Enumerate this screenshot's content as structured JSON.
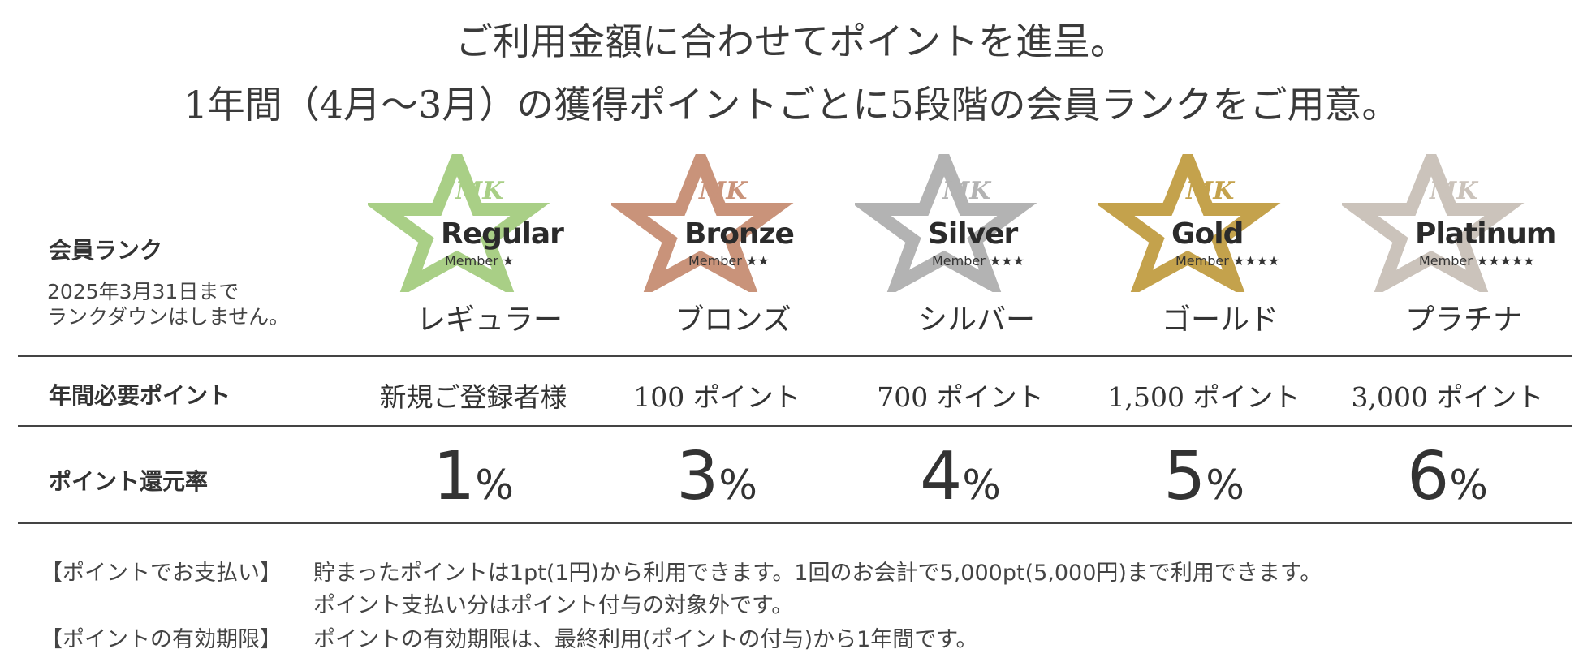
{
  "headline": {
    "line1": "ご利用金額に合わせてポイントを進呈。",
    "line2": "1年間（4月〜3月）の獲得ポイントごとに5段階の会員ランクをご用意。"
  },
  "rows": {
    "rank_label": "会員ランク",
    "rank_note_line1": "2025年3月31日まで",
    "rank_note_line2": "ランクダウンはしません。",
    "points_label": "年間必要ポイント",
    "rate_label": "ポイント還元率"
  },
  "tiers": [
    {
      "name_en": "Regular",
      "member": "Member ★",
      "mk": "MK",
      "name_jp": "レギュラー",
      "required": "新規ご登録者様",
      "rate": "1",
      "rate_unit": "%",
      "color": "#a9cf86"
    },
    {
      "name_en": "Bronze",
      "member": "Member ★★",
      "mk": "MK",
      "name_jp": "ブロンズ",
      "required": "100 ポイント",
      "rate": "3",
      "rate_unit": "%",
      "color": "#c9937a"
    },
    {
      "name_en": "Silver",
      "member": "Member ★★★",
      "mk": "MK",
      "name_jp": "シルバー",
      "required": "700 ポイント",
      "rate": "4",
      "rate_unit": "%",
      "color": "#b3b3b3"
    },
    {
      "name_en": "Gold",
      "member": "Member ★★★★",
      "mk": "MK",
      "name_jp": "ゴールド",
      "required": "1,500 ポイント",
      "rate": "5",
      "rate_unit": "%",
      "color": "#c4a24c"
    },
    {
      "name_en": "Platinum",
      "member": "Member ★★★★★",
      "mk": "MK",
      "name_jp": "プラチナ",
      "required": "3,000 ポイント",
      "rate": "6",
      "rate_unit": "%",
      "color": "#cbc3bb"
    }
  ],
  "notes": {
    "payment_tag": "【ポイントでお支払い】",
    "payment_text": "貯まったポイントは1pt(1円)から利用できます。1回のお会計で5,000pt(5,000円)まで利用できます。",
    "payment_text2": "ポイント支払い分はポイント付与の対象外です。",
    "expiry_tag": "【ポイントの有効期限】",
    "expiry_text": "ポイントの有効期限は、最終利用(ポイントの付与)から1年間です。"
  }
}
